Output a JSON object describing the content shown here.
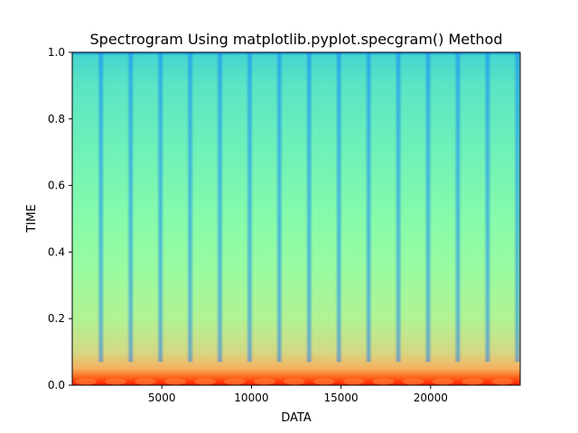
{
  "chart_data": {
    "type": "heatmap",
    "title": "Spectrogram Using matplotlib.pyplot.specgram() Method",
    "xlabel": "DATA",
    "ylabel": "TIME",
    "xlim": [
      0,
      25000
    ],
    "ylim": [
      0.0,
      1.0
    ],
    "xticks": [
      5000,
      10000,
      15000,
      20000
    ],
    "yticks": [
      0.0,
      0.2,
      0.4,
      0.6,
      0.8,
      1.0
    ],
    "xtick_labels": [
      "5000",
      "10000",
      "15000",
      "20000"
    ],
    "ytick_labels": [
      "0.0",
      "0.2",
      "0.4",
      "0.6",
      "0.8",
      "1.0"
    ],
    "colormap": "rainbow",
    "grid": false,
    "stripe_period": 1660,
    "stripe_offset": 1600,
    "intensity_profile": [
      {
        "y": 0.0,
        "color": "#ff1a00"
      },
      {
        "y": 0.02,
        "color": "#ff5a14"
      },
      {
        "y": 0.05,
        "color": "#f6b060"
      },
      {
        "y": 0.1,
        "color": "#d4d983"
      },
      {
        "y": 0.2,
        "color": "#b1f394"
      },
      {
        "y": 0.35,
        "color": "#99fba0"
      },
      {
        "y": 0.5,
        "color": "#86fbaa"
      },
      {
        "y": 0.7,
        "color": "#70f1b8"
      },
      {
        "y": 0.9,
        "color": "#5ae5c4"
      },
      {
        "y": 0.99,
        "color": "#46d6cf"
      },
      {
        "y": 1.0,
        "color": "#1f8fe0"
      }
    ]
  }
}
